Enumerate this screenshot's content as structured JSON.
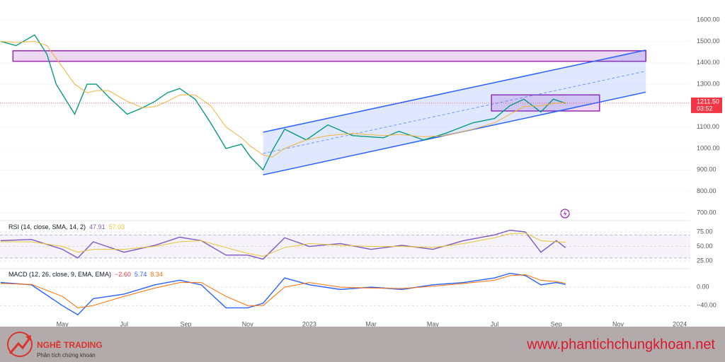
{
  "chart_data": [
    {
      "type": "line",
      "x": [
        2.0,
        2.5,
        3.1,
        3.5,
        3.8,
        4.4,
        4.8,
        5.1,
        5.5,
        6.1,
        6.6,
        7.0,
        7.4,
        7.8,
        8.3,
        8.8,
        9.3,
        9.8,
        10.1,
        10.5,
        10.8,
        11.2,
        11.9,
        12.6,
        13.4,
        14.4,
        14.9,
        15.7,
        16.4,
        17.3,
        18.0,
        18.5,
        18.95,
        19.5,
        19.9,
        20.3
      ],
      "series": [
        {
          "color": "#089981",
          "values": [
            1500,
            1480,
            1530,
            1440,
            1300,
            1160,
            1300,
            1300,
            1240,
            1160,
            1190,
            1220,
            1260,
            1280,
            1230,
            1120,
            1000,
            1020,
            960,
            900,
            990,
            1090,
            1040,
            1110,
            1060,
            1050,
            1080,
            1040,
            1070,
            1120,
            1140,
            1200,
            1230,
            1170,
            1230,
            1211.5
          ]
        },
        {
          "color": "#f2b33d",
          "values": [
            1500,
            1495,
            1500,
            1480,
            1420,
            1300,
            1260,
            1270,
            1270,
            1220,
            1190,
            1195,
            1220,
            1250,
            1250,
            1200,
            1100,
            1050,
            1010,
            970,
            960,
            1000,
            1040,
            1060,
            1070,
            1060,
            1065,
            1055,
            1060,
            1090,
            1120,
            1160,
            1195,
            1200,
            1210,
            1215
          ]
        }
      ],
      "xlim": [
        1.98,
        24.34
      ],
      "ylim": [
        670,
        1660
      ],
      "xticks": [
        {
          "value": 4,
          "label": "May"
        },
        {
          "value": 6,
          "label": "Jul"
        },
        {
          "value": 8,
          "label": "Sep"
        },
        {
          "value": 10,
          "label": "Nov"
        },
        {
          "value": 12,
          "label": "2023"
        },
        {
          "value": 14,
          "label": "Mar"
        },
        {
          "value": 16,
          "label": "May"
        },
        {
          "value": 18,
          "label": "Jul"
        },
        {
          "value": 20,
          "label": "Sep"
        },
        {
          "value": 22,
          "label": "Nov"
        },
        {
          "value": 24,
          "label": "2024"
        }
      ],
      "yticks": [
        {
          "value": 1600,
          "label": "1600.00"
        },
        {
          "value": 1500,
          "label": "1500.00"
        },
        {
          "value": 1400,
          "label": "1400.00"
        },
        {
          "value": 1300,
          "label": "1300.00"
        },
        {
          "value": 1200,
          "label": "1200.00"
        },
        {
          "value": 1100,
          "label": "1100.00"
        },
        {
          "value": 1000,
          "label": "1000.00"
        },
        {
          "value": 900,
          "label": "900.00"
        },
        {
          "value": 800,
          "label": "800.00"
        },
        {
          "value": 700,
          "label": "700.00"
        }
      ],
      "channel": {
        "x": [
          10.5,
          22.9
        ],
        "lower": [
          877,
          1263
        ],
        "upper": [
          1076,
          1459
        ],
        "color": "#2962ff"
      },
      "zones": [
        {
          "x": [
            2.4,
            22.9
          ],
          "y": [
            1407,
            1456
          ],
          "color": "#9c27b0"
        },
        {
          "x": [
            17.9,
            21.4
          ],
          "y": [
            1175,
            1250
          ],
          "color": "#9c27b0"
        }
      ],
      "last_price": {
        "value": 1211.5,
        "label": "1211.50"
      },
      "countdown": "03:52"
    },
    {
      "type": "line",
      "title": "RSI (14, close, SMA, 14, 2)",
      "x": [
        2,
        3,
        4,
        4.5,
        5,
        6,
        7,
        7.8,
        8.5,
        9.3,
        10,
        10.5,
        11.2,
        12,
        13,
        14,
        15,
        16,
        17,
        18,
        18.5,
        19,
        19.5,
        20,
        20.3
      ],
      "series": [
        {
          "color": "#7e57c2",
          "values": [
            60,
            62,
            45,
            30,
            58,
            40,
            52,
            66,
            60,
            35,
            35,
            28,
            65,
            50,
            55,
            45,
            52,
            45,
            60,
            70,
            78,
            75,
            40,
            60,
            47.91
          ]
        },
        {
          "color": "#e8c534",
          "values": [
            58,
            58,
            50,
            40,
            45,
            45,
            50,
            58,
            60,
            48,
            38,
            33,
            48,
            55,
            52,
            50,
            50,
            48,
            55,
            65,
            72,
            73,
            60,
            58,
            57.03
          ]
        }
      ],
      "readouts": [
        {
          "value": 47.91,
          "color": "#7e57c2"
        },
        {
          "value": 57.03,
          "color": "#e8c534"
        }
      ],
      "xlim": [
        1.98,
        24.34
      ],
      "ylim": [
        14,
        91
      ],
      "yticks": [
        {
          "value": 75,
          "label": "75.00"
        },
        {
          "value": 50,
          "label": "50.00"
        },
        {
          "value": 25,
          "label": "25.00"
        }
      ],
      "band": [
        30,
        70
      ]
    },
    {
      "type": "line",
      "title": "MACD (12, 26, close, 9, EMA, EMA)",
      "x": [
        2,
        3,
        4,
        4.5,
        5,
        6,
        7,
        7.8,
        8.5,
        9.3,
        10,
        10.5,
        11.2,
        12,
        13,
        14,
        15,
        16,
        17,
        18,
        18.5,
        19,
        19.5,
        20,
        20.3
      ],
      "series": [
        {
          "color": "#2962ff",
          "values": [
            10,
            5,
            -40,
            -60,
            -25,
            -15,
            5,
            15,
            5,
            -45,
            -45,
            -35,
            20,
            5,
            -5,
            0,
            -5,
            5,
            10,
            20,
            30,
            25,
            5,
            10,
            5.74
          ]
        },
        {
          "color": "#ff6d00",
          "values": [
            8,
            6,
            -20,
            -45,
            -40,
            -20,
            -2,
            10,
            10,
            -20,
            -40,
            -40,
            0,
            10,
            0,
            -2,
            -3,
            2,
            8,
            15,
            25,
            27,
            15,
            12,
            8.34
          ]
        }
      ],
      "readouts": [
        {
          "value": -2.6,
          "label": "−2.60",
          "color": "#f23645"
        },
        {
          "value": 5.74,
          "color": "#2962ff"
        },
        {
          "value": 8.34,
          "color": "#ff6d00"
        }
      ],
      "xlim": [
        1.98,
        24.34
      ],
      "ylim": [
        -75,
        37
      ],
      "yticks": [
        {
          "value": 0,
          "label": "0.00"
        },
        {
          "value": -40,
          "label": "−40.00"
        }
      ]
    }
  ],
  "footer": {
    "brand": "NGHỀ TRADING",
    "tagline": "Phân tích chứng khoán",
    "url": "www.phantichchungkhoan.net"
  }
}
